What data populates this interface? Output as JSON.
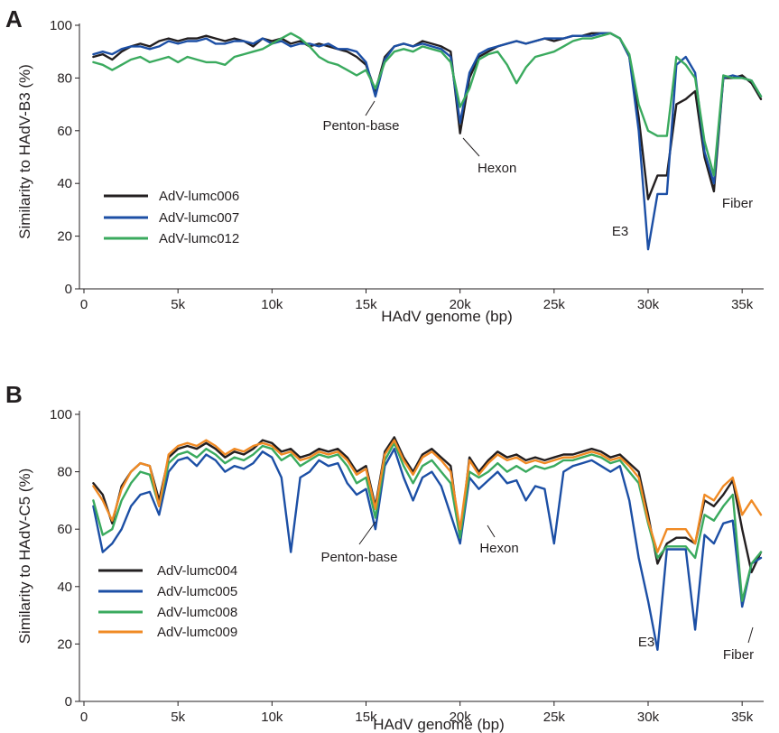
{
  "colors": {
    "black": "#231f20",
    "blue": "#1c4fa5",
    "green": "#3aaa5e",
    "orange": "#f08a24"
  },
  "chart_data": [
    {
      "type": "line",
      "panel_label": "A",
      "title": "",
      "xlabel": "HAdV genome (bp)",
      "ylabel": "Similarity to HAdV-B3 (%)",
      "xlim": [
        0,
        36000
      ],
      "ylim": [
        0,
        100
      ],
      "x_ticks": [
        0,
        5000,
        10000,
        15000,
        20000,
        25000,
        30000,
        35000
      ],
      "x_tick_labels": [
        "0",
        "5k",
        "10k",
        "15k",
        "20k",
        "25k",
        "30k",
        "35k"
      ],
      "y_ticks": [
        0,
        20,
        40,
        60,
        80,
        100
      ],
      "y_tick_labels": [
        "0",
        "20",
        "40",
        "60",
        "80",
        "100"
      ],
      "grid": false,
      "legend_position": "bottom-left",
      "x": [
        500,
        1000,
        1500,
        2000,
        2500,
        3000,
        3500,
        4000,
        4500,
        5000,
        5500,
        6000,
        6500,
        7000,
        7500,
        8000,
        8500,
        9000,
        9500,
        10000,
        10500,
        11000,
        11500,
        12000,
        12500,
        13000,
        13500,
        14000,
        14500,
        15000,
        15500,
        16000,
        16500,
        17000,
        17500,
        18000,
        18500,
        19000,
        19500,
        20000,
        20500,
        21000,
        21500,
        22000,
        22500,
        23000,
        23500,
        24000,
        24500,
        25000,
        25500,
        26000,
        26500,
        27000,
        27500,
        28000,
        28500,
        29000,
        29500,
        30000,
        30500,
        31000,
        31500,
        32000,
        32500,
        33000,
        33500,
        34000,
        34500,
        35000,
        35500,
        36000
      ],
      "series": [
        {
          "name": "AdV-lumc006",
          "color": "#231f20",
          "values": [
            88,
            89,
            87,
            90,
            92,
            93,
            92,
            94,
            95,
            94,
            95,
            95,
            96,
            95,
            94,
            95,
            94,
            92,
            95,
            94,
            95,
            93,
            94,
            92,
            93,
            92,
            91,
            90,
            88,
            85,
            75,
            88,
            92,
            93,
            92,
            94,
            93,
            92,
            90,
            59,
            80,
            88,
            90,
            92,
            93,
            94,
            93,
            94,
            95,
            94,
            95,
            96,
            96,
            97,
            97,
            97,
            95,
            88,
            65,
            34,
            43,
            43,
            70,
            72,
            75,
            50,
            37,
            80,
            80,
            81,
            78,
            72
          ]
        },
        {
          "name": "AdV-lumc007",
          "color": "#1c4fa5",
          "values": [
            89,
            90,
            89,
            91,
            92,
            92,
            91,
            92,
            94,
            93,
            94,
            94,
            95,
            93,
            93,
            94,
            94,
            93,
            95,
            93,
            94,
            92,
            93,
            93,
            92,
            93,
            91,
            91,
            90,
            86,
            73,
            87,
            92,
            93,
            92,
            93,
            92,
            91,
            88,
            63,
            82,
            89,
            91,
            92,
            93,
            94,
            93,
            94,
            95,
            95,
            95,
            96,
            96,
            96,
            97,
            97,
            95,
            88,
            60,
            15,
            36,
            36,
            85,
            88,
            82,
            52,
            40,
            80,
            81,
            80,
            79,
            73
          ]
        },
        {
          "name": "AdV-lumc012",
          "color": "#3aaa5e",
          "values": [
            86,
            85,
            83,
            85,
            87,
            88,
            86,
            87,
            88,
            86,
            88,
            87,
            86,
            86,
            85,
            88,
            89,
            90,
            91,
            93,
            95,
            97,
            95,
            92,
            88,
            86,
            85,
            83,
            81,
            83,
            76,
            86,
            90,
            91,
            90,
            92,
            91,
            90,
            86,
            69,
            76,
            87,
            89,
            90,
            85,
            78,
            84,
            88,
            89,
            90,
            92,
            94,
            95,
            95,
            96,
            97,
            95,
            89,
            70,
            60,
            58,
            58,
            88,
            85,
            80,
            56,
            43,
            81,
            80,
            80,
            79,
            73
          ]
        }
      ],
      "annotations": [
        "Penton-base",
        "Hexon",
        "E3",
        "Fiber"
      ]
    },
    {
      "type": "line",
      "panel_label": "B",
      "title": "",
      "xlabel": "HAdV genome (bp)",
      "ylabel": "Similarity to HAdV-C5 (%)",
      "xlim": [
        0,
        36000
      ],
      "ylim": [
        0,
        100
      ],
      "x_ticks": [
        0,
        5000,
        10000,
        15000,
        20000,
        25000,
        30000,
        35000
      ],
      "x_tick_labels": [
        "0",
        "5k",
        "10k",
        "15k",
        "20k",
        "25k",
        "30k",
        "35k"
      ],
      "y_ticks": [
        0,
        20,
        40,
        60,
        80,
        100
      ],
      "y_tick_labels": [
        "0",
        "20",
        "40",
        "60",
        "80",
        "100"
      ],
      "grid": false,
      "legend_position": "bottom-left",
      "x": [
        500,
        1000,
        1500,
        2000,
        2500,
        3000,
        3500,
        4000,
        4500,
        5000,
        5500,
        6000,
        6500,
        7000,
        7500,
        8000,
        8500,
        9000,
        9500,
        10000,
        10500,
        11000,
        11500,
        12000,
        12500,
        13000,
        13500,
        14000,
        14500,
        15000,
        15500,
        16000,
        16500,
        17000,
        17500,
        18000,
        18500,
        19000,
        19500,
        20000,
        20500,
        21000,
        21500,
        22000,
        22500,
        23000,
        23500,
        24000,
        24500,
        25000,
        25500,
        26000,
        26500,
        27000,
        27500,
        28000,
        28500,
        29000,
        29500,
        30000,
        30500,
        31000,
        31500,
        32000,
        32500,
        33000,
        33500,
        34000,
        34500,
        35000,
        35500,
        36000
      ],
      "series": [
        {
          "name": "AdV-lumc004",
          "color": "#231f20",
          "values": [
            76,
            72,
            62,
            75,
            80,
            83,
            82,
            70,
            85,
            88,
            89,
            88,
            90,
            88,
            85,
            87,
            86,
            88,
            91,
            90,
            87,
            88,
            85,
            86,
            88,
            87,
            88,
            85,
            80,
            82,
            68,
            87,
            92,
            85,
            80,
            86,
            88,
            85,
            82,
            57,
            85,
            80,
            84,
            87,
            85,
            86,
            84,
            85,
            84,
            85,
            86,
            86,
            87,
            88,
            87,
            85,
            86,
            83,
            80,
            65,
            48,
            55,
            57,
            57,
            55,
            70,
            68,
            72,
            77,
            60,
            45,
            52
          ]
        },
        {
          "name": "AdV-lumc005",
          "color": "#1c4fa5",
          "values": [
            68,
            52,
            55,
            60,
            68,
            72,
            73,
            65,
            80,
            84,
            85,
            82,
            86,
            84,
            80,
            82,
            81,
            83,
            87,
            85,
            78,
            52,
            78,
            80,
            84,
            82,
            83,
            76,
            72,
            74,
            60,
            82,
            88,
            78,
            70,
            78,
            80,
            75,
            65,
            55,
            78,
            74,
            77,
            80,
            76,
            77,
            70,
            75,
            74,
            55,
            80,
            82,
            83,
            84,
            82,
            80,
            82,
            70,
            50,
            35,
            18,
            53,
            53,
            53,
            25,
            58,
            55,
            62,
            63,
            33,
            48,
            50
          ]
        },
        {
          "name": "AdV-lumc008",
          "color": "#3aaa5e",
          "values": [
            70,
            58,
            60,
            70,
            76,
            80,
            79,
            68,
            83,
            86,
            87,
            85,
            88,
            86,
            83,
            85,
            84,
            86,
            89,
            88,
            84,
            86,
            82,
            84,
            86,
            85,
            86,
            82,
            76,
            78,
            64,
            84,
            90,
            82,
            76,
            82,
            84,
            80,
            76,
            57,
            80,
            78,
            80,
            83,
            80,
            82,
            80,
            82,
            81,
            82,
            84,
            84,
            85,
            86,
            85,
            83,
            84,
            80,
            76,
            62,
            50,
            54,
            54,
            54,
            50,
            65,
            63,
            68,
            72,
            35,
            48,
            52
          ]
        },
        {
          "name": "AdV-lumc009",
          "color": "#f08a24",
          "values": [
            75,
            70,
            63,
            74,
            80,
            83,
            82,
            68,
            86,
            89,
            90,
            89,
            91,
            89,
            86,
            88,
            87,
            89,
            90,
            89,
            86,
            87,
            84,
            85,
            87,
            86,
            87,
            84,
            79,
            81,
            67,
            86,
            91,
            84,
            79,
            85,
            87,
            84,
            80,
            60,
            84,
            79,
            83,
            86,
            84,
            85,
            83,
            84,
            83,
            84,
            85,
            85,
            86,
            87,
            86,
            84,
            85,
            82,
            78,
            63,
            52,
            60,
            60,
            60,
            55,
            72,
            70,
            75,
            78,
            65,
            70,
            65
          ]
        }
      ],
      "annotations": [
        "Penton-base",
        "Hexon",
        "E3",
        "Fiber"
      ]
    }
  ]
}
